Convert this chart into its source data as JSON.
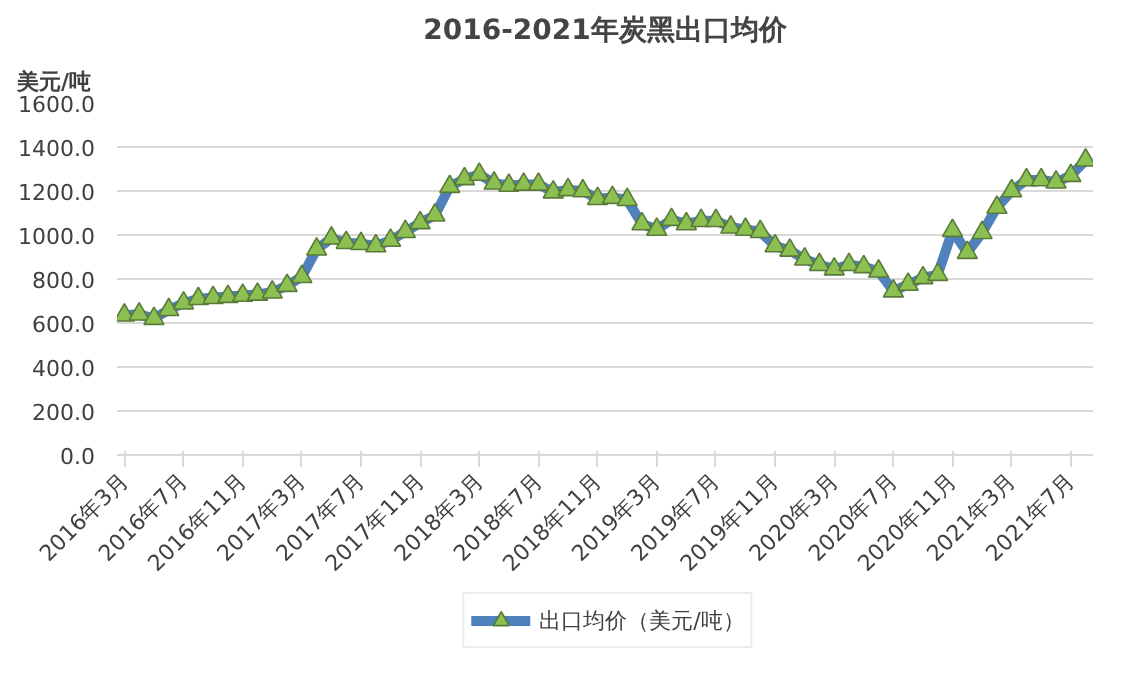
{
  "chart_data": {
    "type": "line",
    "title": "2016-2021年炭黑出口均价",
    "ylabel": "美元/吨",
    "categories": [
      "2016年3月",
      null,
      null,
      null,
      "2016年7月",
      null,
      null,
      null,
      "2016年11月",
      null,
      null,
      null,
      "2017年3月",
      null,
      null,
      null,
      "2017年7月",
      null,
      null,
      null,
      "2017年11月",
      null,
      null,
      null,
      "2018年3月",
      null,
      null,
      null,
      "2018年7月",
      null,
      null,
      null,
      "2018年11月",
      null,
      null,
      null,
      "2019年3月",
      null,
      null,
      null,
      "2019年7月",
      null,
      null,
      null,
      "2019年11月",
      null,
      null,
      null,
      "2020年3月",
      null,
      null,
      null,
      "2020年7月",
      null,
      null,
      null,
      "2020年11月",
      null,
      null,
      null,
      "2021年3月",
      null,
      null,
      null,
      "2021年7月",
      null
    ],
    "series": [
      {
        "name": "出口均价（美元/吨）",
        "color": "#4f81bd",
        "values": [
          635,
          640,
          620,
          660,
          690,
          710,
          715,
          720,
          725,
          730,
          740,
          770,
          810,
          935,
          985,
          965,
          960,
          950,
          975,
          1015,
          1055,
          1090,
          1220,
          1255,
          1275,
          1235,
          1225,
          1230,
          1230,
          1195,
          1205,
          1200,
          1165,
          1170,
          1160,
          1050,
          1025,
          1070,
          1050,
          1065,
          1065,
          1035,
          1025,
          1015,
          950,
          930,
          890,
          865,
          845,
          865,
          855,
          835,
          745,
          775,
          805,
          820,
          1020,
          920,
          1010,
          1125,
          1200,
          1250,
          1250,
          1240,
          1270,
          1340
        ]
      }
    ],
    "ylim": [
      0,
      1600
    ],
    "yticks": [
      {
        "value": 0,
        "label": "0.0"
      },
      {
        "value": 200,
        "label": "200.0"
      },
      {
        "value": 400,
        "label": "400.0"
      },
      {
        "value": 600,
        "label": "600.0"
      },
      {
        "value": 800,
        "label": "800.0"
      },
      {
        "value": 1000,
        "label": "1000.0"
      },
      {
        "value": 1200,
        "label": "1200.0"
      },
      {
        "value": 1400,
        "label": "1400.0"
      },
      {
        "value": 1600,
        "label": "1600.0"
      }
    ],
    "grid": "y",
    "legend": "bottom",
    "marker": "triangle",
    "line_style": "solid"
  }
}
